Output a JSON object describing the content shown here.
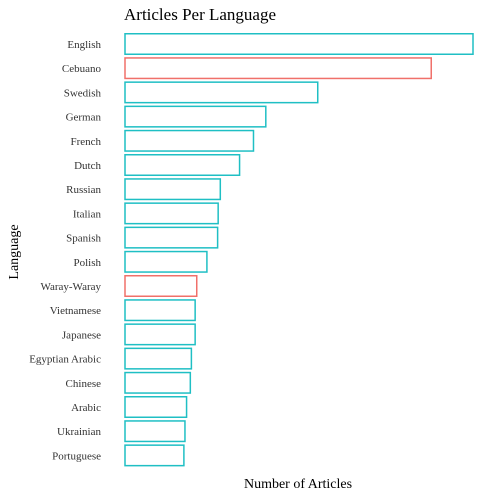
{
  "chart_data": {
    "type": "bar",
    "orientation": "horizontal",
    "title": "Articles Per Language",
    "xlabel": "Number of Articles",
    "ylabel": "Language",
    "grid": false,
    "x_ticks_shown": false,
    "categories": [
      "English",
      "Cebuano",
      "Swedish",
      "German",
      "French",
      "Dutch",
      "Russian",
      "Italian",
      "Spanish",
      "Polish",
      "Waray-Waray",
      "Vietnamese",
      "Japanese",
      "Egyptian Arabic",
      "Chinese",
      "Arabic",
      "Ukrainian",
      "Portuguese"
    ],
    "values": [
      6500000,
      5720000,
      3600000,
      2630000,
      2400000,
      2140000,
      1780000,
      1740000,
      1730000,
      1530000,
      1340000,
      1310000,
      1310000,
      1240000,
      1220000,
      1150000,
      1120000,
      1100000
    ],
    "highlighted": [
      false,
      true,
      false,
      false,
      false,
      false,
      false,
      false,
      false,
      false,
      true,
      false,
      false,
      false,
      false,
      false,
      false,
      false
    ],
    "colors": {
      "default": "#1fbfc4",
      "highlight": "#f0706a"
    },
    "xlim": [
      0,
      6500000
    ]
  }
}
